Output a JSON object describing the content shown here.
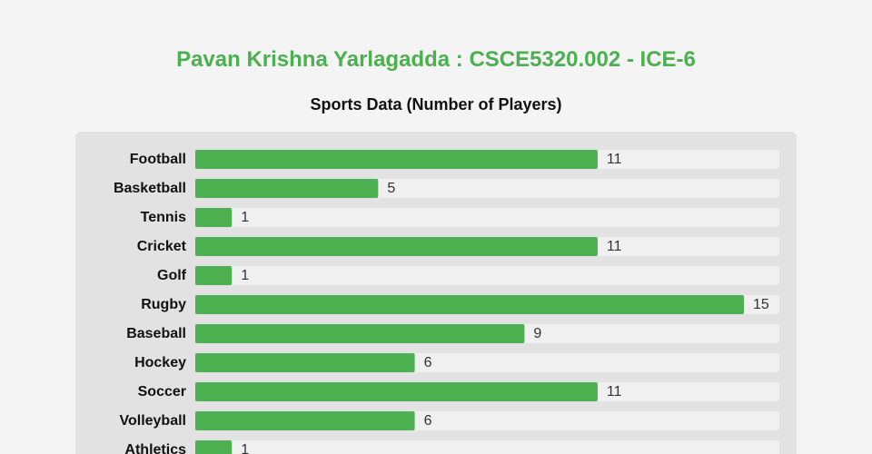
{
  "header": {
    "title": "Pavan Krishna Yarlagadda : CSCE5320.002 - ICE-6",
    "subtitle": "Sports Data (Number of Players)"
  },
  "colors": {
    "title": "#4caf50",
    "bar": "#4caf50",
    "track": "#f0f0f0",
    "card": "#e2e2e2",
    "background": "#f4f4f4"
  },
  "chart_data": {
    "type": "bar",
    "orientation": "horizontal",
    "title": "Sports Data (Number of Players)",
    "categories": [
      "Football",
      "Basketball",
      "Tennis",
      "Cricket",
      "Golf",
      "Rugby",
      "Baseball",
      "Hockey",
      "Soccer",
      "Volleyball",
      "Athletics"
    ],
    "values": [
      11,
      5,
      1,
      11,
      1,
      15,
      9,
      6,
      11,
      6,
      1
    ],
    "xlim": [
      0,
      15
    ],
    "grid": false,
    "legend": "none"
  }
}
